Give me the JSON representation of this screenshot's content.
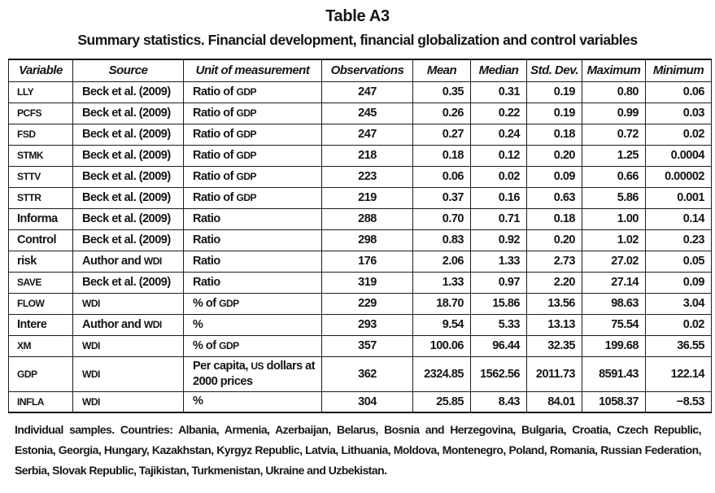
{
  "title": "Table A3",
  "subtitle": "Summary statistics. Financial development, financial globalization and control variables",
  "table": {
    "columns": [
      "Variable",
      "Source",
      "Unit of measurement",
      "Observations",
      "Mean",
      "Median",
      "Std. Dev.",
      "Maximum",
      "Minimum"
    ],
    "rows": [
      [
        "LLY",
        "Beck et al. (2009)",
        "Ratio of GDP",
        "247",
        "0.35",
        "0.31",
        "0.19",
        "0.80",
        "0.06"
      ],
      [
        "PCFS",
        "Beck et al. (2009)",
        "Ratio of GDP",
        "245",
        "0.26",
        "0.22",
        "0.19",
        "0.99",
        "0.03"
      ],
      [
        "FSD",
        "Beck et al. (2009)",
        "Ratio of GDP",
        "247",
        "0.27",
        "0.24",
        "0.18",
        "0.72",
        "0.02"
      ],
      [
        "STMK",
        "Beck et al. (2009)",
        "Ratio of GDP",
        "218",
        "0.18",
        "0.12",
        "0.20",
        "1.25",
        "0.0004"
      ],
      [
        "STTV",
        "Beck et al. (2009)",
        "Ratio of GDP",
        "223",
        "0.06",
        "0.02",
        "0.09",
        "0.66",
        "0.00002"
      ],
      [
        "STTR",
        "Beck et al. (2009)",
        "Ratio of GDP",
        "219",
        "0.37",
        "0.16",
        "0.63",
        "5.86",
        "0.001"
      ],
      [
        "Informa",
        "Beck et al. (2009)",
        "Ratio",
        "288",
        "0.70",
        "0.71",
        "0.18",
        "1.00",
        "0.14"
      ],
      [
        "Control",
        "Beck et al. (2009)",
        "Ratio",
        "298",
        "0.83",
        "0.92",
        "0.20",
        "1.02",
        "0.23"
      ],
      [
        "risk",
        "Author and WDI",
        "Ratio",
        "176",
        "2.06",
        "1.33",
        "2.73",
        "27.02",
        "0.05"
      ],
      [
        "SAVE",
        "Beck et al. (2009)",
        "Ratio",
        "319",
        "1.33",
        "0.97",
        "2.20",
        "27.14",
        "0.09"
      ],
      [
        "FLOW",
        "WDI",
        "% of GDP",
        "229",
        "18.70",
        "15.86",
        "13.56",
        "98.63",
        "3.04"
      ],
      [
        "Intere",
        "Author and WDI",
        "%",
        "293",
        "9.54",
        "5.33",
        "13.13",
        "75.54",
        "0.02"
      ],
      [
        "XM",
        "WDI",
        "% of GDP",
        "357",
        "100.06",
        "96.44",
        "32.35",
        "199.68",
        "36.55"
      ],
      [
        "GDP",
        "WDI",
        "Per capita, US dollars at 2000 prices",
        "362",
        "2324.85",
        "1562.56",
        "2011.73",
        "8591.43",
        "122.14"
      ],
      [
        "INFLA",
        "WDI",
        "%",
        "304",
        "25.85",
        "8.43",
        "84.01",
        "1058.37",
        "−8.53"
      ]
    ]
  },
  "footnote": "Individual samples. Countries: Albania, Armenia, Azerbaijan, Belarus, Bosnia and Herzegovina, Bulgaria, Croatia, Czech Republic, Estonia, Georgia, Hungary, Kazakhstan, Kyrgyz Republic, Latvia, Lithuania, Moldova, Montenegro, Poland, Romania, Russian Federation, Serbia, Slovak Republic, Tajikistan, Turkmenistan, Ukraine and Uzbekistan."
}
